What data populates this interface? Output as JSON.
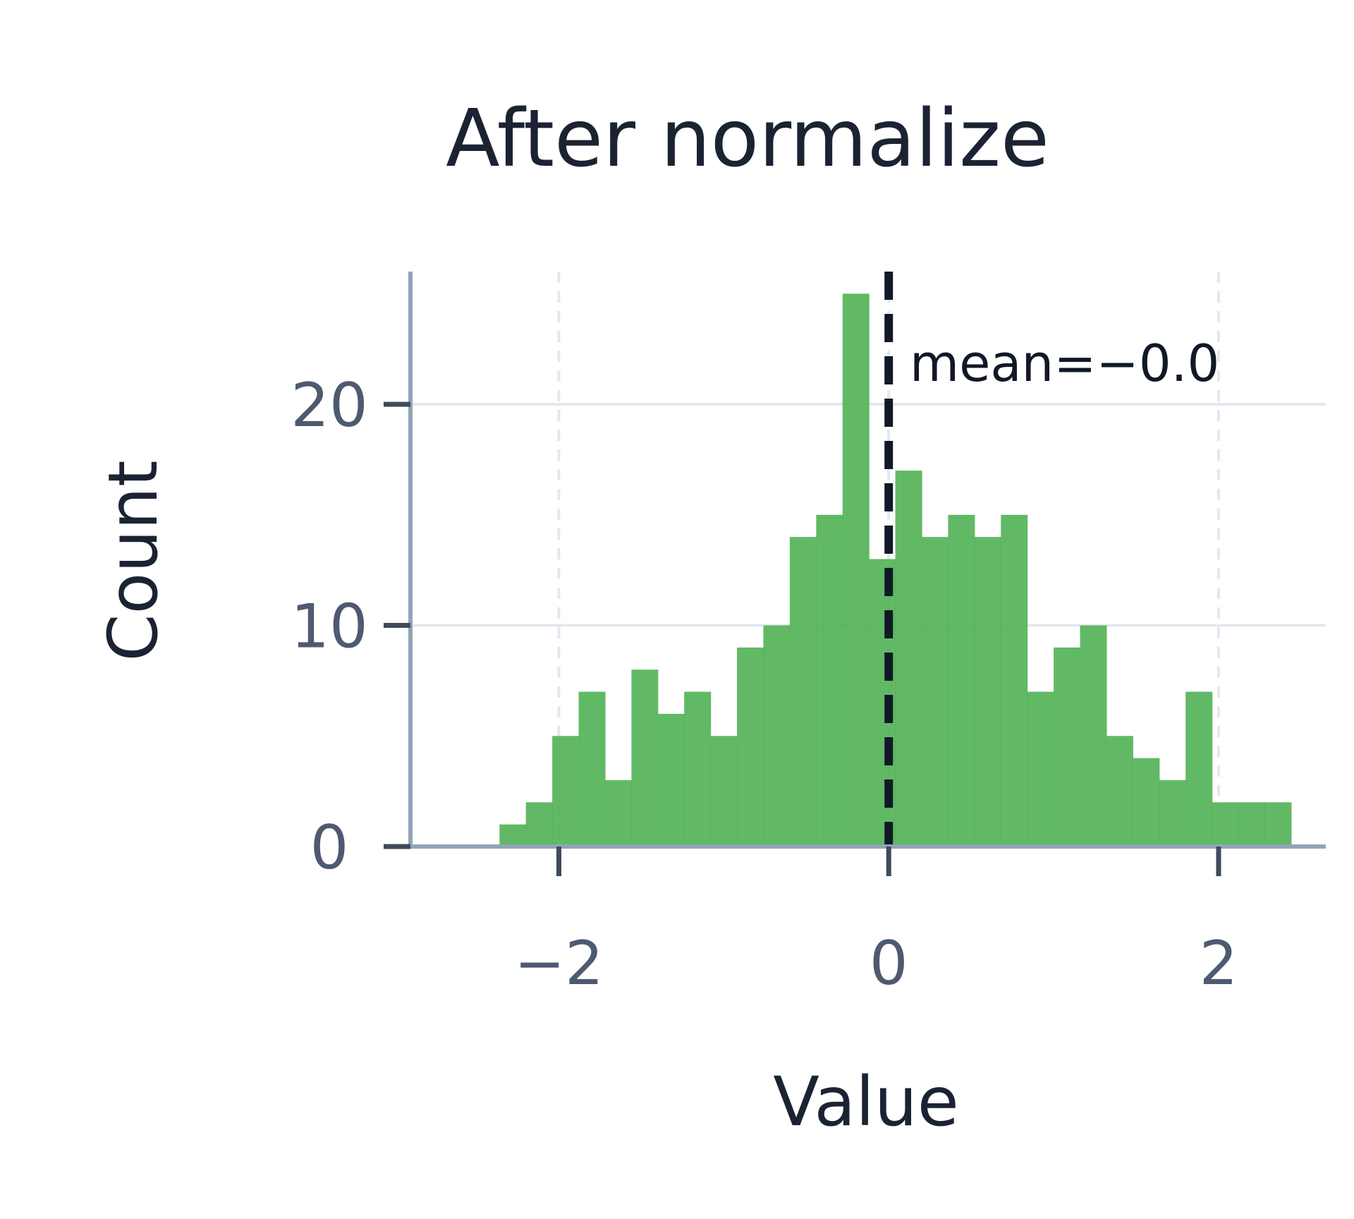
{
  "chart_data": {
    "type": "bar",
    "title": "After normalize",
    "xlabel": "Value",
    "ylabel": "Count",
    "xlim": [
      -2.9,
      2.65
    ],
    "ylim": [
      0,
      26
    ],
    "xticks": [
      -2,
      0,
      2
    ],
    "xtick_labels": [
      "−2",
      "0",
      "2"
    ],
    "yticks": [
      0,
      10,
      20
    ],
    "ytick_labels": [
      "0",
      "10",
      "20"
    ],
    "grid": true,
    "bar_color": "#4caf50",
    "bin_width": 0.16,
    "bin_edges_start": -2.36,
    "counts": [
      1,
      2,
      5,
      7,
      3,
      8,
      6,
      7,
      5,
      9,
      10,
      14,
      15,
      25,
      13,
      17,
      14,
      15,
      14,
      15,
      7,
      9,
      10,
      5,
      4,
      3,
      7,
      2,
      2,
      2
    ],
    "mean_line": {
      "x": 0.0,
      "label": "mean=−0.0",
      "color": "#111827"
    }
  }
}
